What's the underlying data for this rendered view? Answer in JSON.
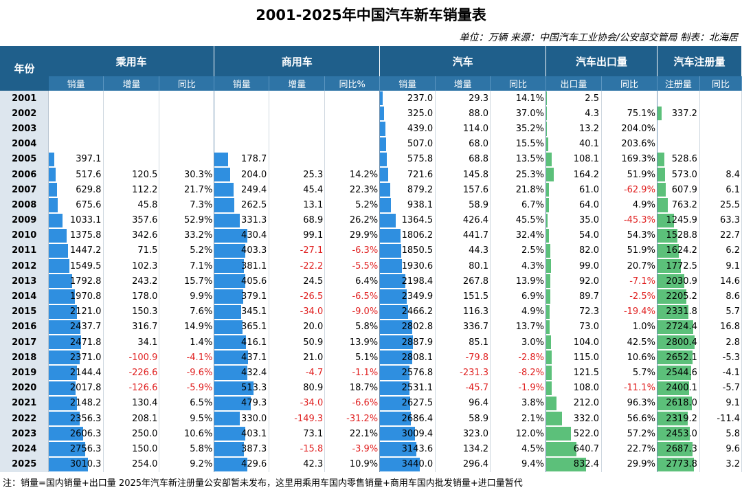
{
  "title": "2001-2025年中国汽车新车销量表",
  "unit": "单位：万辆  来源：中国汽车工业协会/公安部交管局  制表：北海居",
  "headers": {
    "year": "年份",
    "groups": [
      "乘用车",
      "商用车",
      "汽车",
      "汽车出口量",
      "汽车注册量"
    ],
    "sub": [
      [
        "销量",
        "增量",
        "同比"
      ],
      [
        "销量",
        "增量",
        "同比%"
      ],
      [
        "销量",
        "增量",
        "同比"
      ],
      [
        "出口量",
        "同比"
      ],
      [
        "注册量",
        "同比"
      ]
    ]
  },
  "note": "注：销量=国内销量+出口量 2025年汽车新注册量公安部暂未发布，这里用乘用车国内零售销量+商用车国内批发销量+进口量暂代",
  "colors": {
    "header": "#1f5f8b",
    "subheader": "#2e74a6",
    "bar_blue": "#2f8fe0",
    "bar_green": "#5cc07a",
    "negative": "#e02020"
  },
  "chart_data": {
    "type": "table",
    "title": "2001-2025年中国汽车新车销量表",
    "columns": [
      "年份",
      "乘用车销量",
      "乘用车增量",
      "乘用车同比",
      "商用车销量",
      "商用车增量",
      "商用车同比%",
      "汽车销量",
      "汽车增量",
      "汽车同比",
      "出口量",
      "出口同比",
      "注册量",
      "注册同比"
    ],
    "rows": [
      [
        "2001",
        "",
        "",
        "",
        "",
        "",
        "",
        "237.0",
        "29.3",
        "14.1%",
        "2.5",
        "",
        "",
        ""
      ],
      [
        "2002",
        "",
        "",
        "",
        "",
        "",
        "",
        "325.0",
        "88.0",
        "37.0%",
        "4.3",
        "75.1%",
        "337.2",
        ""
      ],
      [
        "2003",
        "",
        "",
        "",
        "",
        "",
        "",
        "439.0",
        "114.0",
        "35.2%",
        "13.2",
        "204.0%",
        "",
        ""
      ],
      [
        "2004",
        "",
        "",
        "",
        "",
        "",
        "",
        "507.0",
        "68.0",
        "15.5%",
        "40.1",
        "203.6%",
        "",
        ""
      ],
      [
        "2005",
        "397.1",
        "",
        "",
        "178.7",
        "",
        "",
        "575.8",
        "68.8",
        "13.5%",
        "108.1",
        "169.3%",
        "528.6",
        ""
      ],
      [
        "2006",
        "517.6",
        "120.5",
        "30.3%",
        "204.0",
        "25.3",
        "14.2%",
        "721.6",
        "145.8",
        "25.3%",
        "164.2",
        "51.9%",
        "573.0",
        "8.4"
      ],
      [
        "2007",
        "629.8",
        "112.2",
        "21.7%",
        "249.4",
        "45.4",
        "22.3%",
        "879.2",
        "157.6",
        "21.8%",
        "61.0",
        "-62.9%",
        "607.9",
        "6.1"
      ],
      [
        "2008",
        "675.6",
        "45.8",
        "7.3%",
        "262.5",
        "13.1",
        "5.2%",
        "938.1",
        "58.9",
        "6.7%",
        "64.0",
        "4.9%",
        "763.2",
        "25.5"
      ],
      [
        "2009",
        "1033.1",
        "357.6",
        "52.9%",
        "331.3",
        "68.9",
        "26.2%",
        "1364.5",
        "426.4",
        "45.5%",
        "35.0",
        "-45.3%",
        "1245.9",
        "63.3"
      ],
      [
        "2010",
        "1375.8",
        "342.6",
        "33.2%",
        "430.4",
        "99.1",
        "29.9%",
        "1806.2",
        "441.7",
        "32.4%",
        "54.0",
        "54.3%",
        "1528.8",
        "22.7"
      ],
      [
        "2011",
        "1447.2",
        "71.5",
        "5.2%",
        "403.3",
        "-27.1",
        "-6.3%",
        "1850.5",
        "44.3",
        "2.5%",
        "82.0",
        "51.9%",
        "1624.2",
        "6.2"
      ],
      [
        "2012",
        "1549.5",
        "102.3",
        "7.1%",
        "381.1",
        "-22.2",
        "-5.5%",
        "1930.6",
        "80.1",
        "4.3%",
        "99.0",
        "20.7%",
        "1772.5",
        "9.1"
      ],
      [
        "2013",
        "1792.8",
        "243.2",
        "15.7%",
        "405.6",
        "24.5",
        "6.4%",
        "2198.4",
        "267.8",
        "13.9%",
        "92.0",
        "-7.1%",
        "2030.9",
        "14.6"
      ],
      [
        "2014",
        "1970.8",
        "178.0",
        "9.9%",
        "379.1",
        "-26.5",
        "-6.5%",
        "2349.9",
        "151.5",
        "6.9%",
        "89.7",
        "-2.5%",
        "2205.2",
        "8.6"
      ],
      [
        "2015",
        "2121.0",
        "150.3",
        "7.6%",
        "345.1",
        "-34.0",
        "-9.0%",
        "2466.2",
        "116.3",
        "4.9%",
        "72.3",
        "-19.4%",
        "2331.8",
        "5.7"
      ],
      [
        "2016",
        "2437.7",
        "316.7",
        "14.9%",
        "365.1",
        "20.0",
        "5.8%",
        "2802.8",
        "336.7",
        "13.7%",
        "73.0",
        "1.0%",
        "2724.4",
        "16.8"
      ],
      [
        "2017",
        "2471.8",
        "34.1",
        "1.4%",
        "416.1",
        "50.9",
        "13.9%",
        "2887.9",
        "85.1",
        "3.0%",
        "104.0",
        "42.5%",
        "2800.4",
        "2.8"
      ],
      [
        "2018",
        "2371.0",
        "-100.9",
        "-4.1%",
        "437.1",
        "21.0",
        "5.1%",
        "2808.1",
        "-79.8",
        "-2.8%",
        "115.0",
        "10.6%",
        "2652.1",
        "-5.3"
      ],
      [
        "2019",
        "2144.4",
        "-226.6",
        "-9.6%",
        "432.4",
        "-4.7",
        "-1.1%",
        "2576.8",
        "-231.3",
        "-8.2%",
        "121.5",
        "5.7%",
        "2544.6",
        "-4.1"
      ],
      [
        "2020",
        "2017.8",
        "-126.6",
        "-5.9%",
        "513.3",
        "80.9",
        "18.7%",
        "2531.1",
        "-45.7",
        "-1.9%",
        "108.0",
        "-11.1%",
        "2400.1",
        "-5.7"
      ],
      [
        "2021",
        "2148.2",
        "130.4",
        "6.5%",
        "479.3",
        "-34.0",
        "-6.6%",
        "2627.5",
        "96.4",
        "3.8%",
        "212.0",
        "96.3%",
        "2618.0",
        "9.1"
      ],
      [
        "2022",
        "2356.3",
        "208.1",
        "9.5%",
        "330.0",
        "-149.3",
        "-31.2%",
        "2686.4",
        "58.9",
        "2.1%",
        "332.0",
        "56.6%",
        "2319.2",
        "-11.4"
      ],
      [
        "2023",
        "2606.3",
        "250.0",
        "10.6%",
        "403.1",
        "73.1",
        "22.1%",
        "3009.4",
        "323.0",
        "12.0%",
        "522.0",
        "57.2%",
        "2453.0",
        "5.8"
      ],
      [
        "2024",
        "2756.3",
        "150.0",
        "5.8%",
        "387.3",
        "-15.8",
        "-3.9%",
        "3143.6",
        "134.2",
        "4.5%",
        "640.7",
        "22.7%",
        "2687.3",
        "9.6"
      ],
      [
        "2025",
        "3010.3",
        "254.0",
        "9.2%",
        "429.6",
        "42.3",
        "10.9%",
        "3440.0",
        "296.4",
        "9.4%",
        "832.4",
        "29.9%",
        "2773.8",
        "3.2"
      ]
    ],
    "bar_columns": [
      1,
      4,
      7,
      10,
      12
    ]
  }
}
